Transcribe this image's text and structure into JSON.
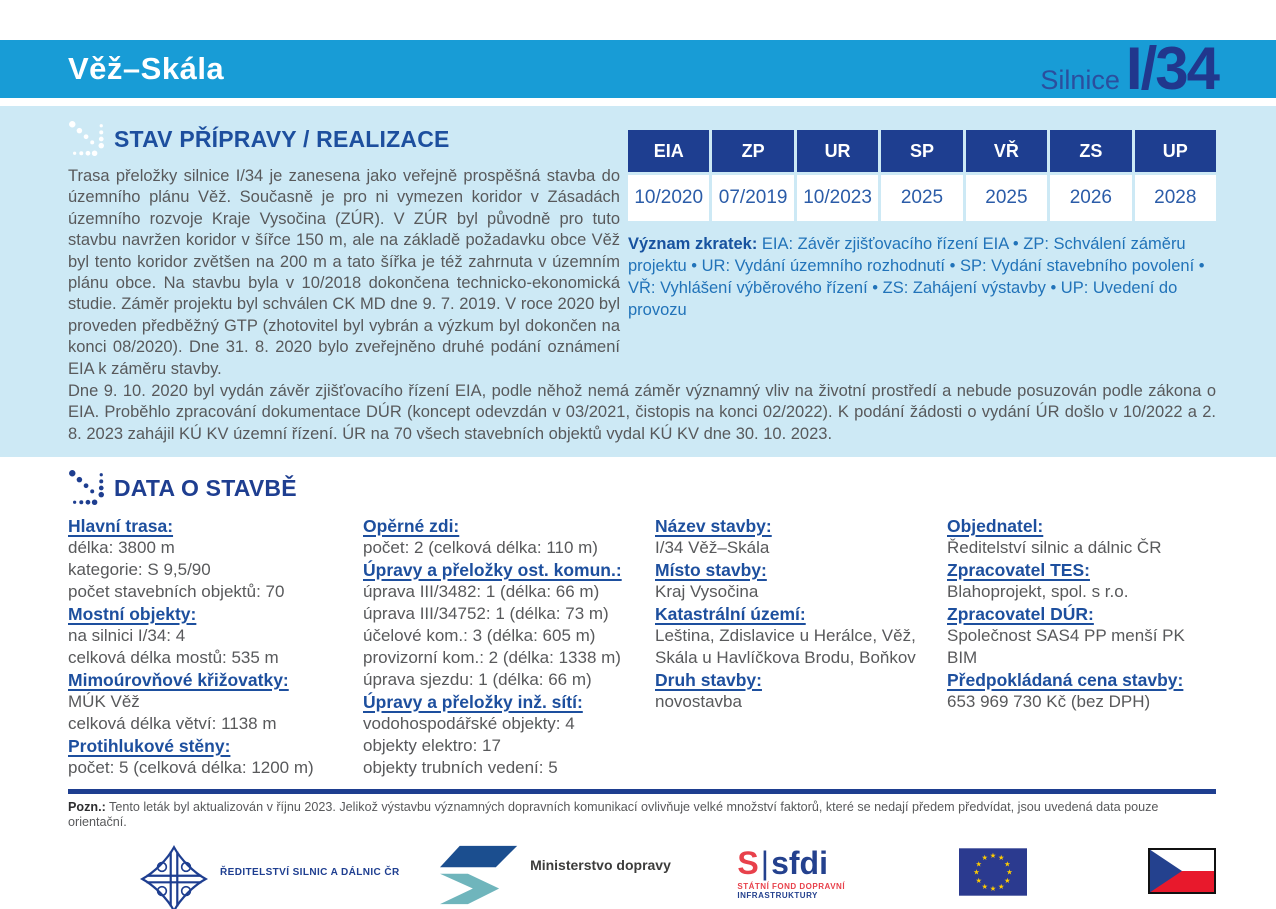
{
  "header": {
    "page_title": "Věž–Skála",
    "road_label": "Silnice",
    "road_number": "I/34"
  },
  "status_section": {
    "title": "STAV PŘÍPRAVY / REALIZACE",
    "paragraph_main": "Trasa přeložky silnice I/34 je zanesena jako veřejně prospěšná stavba do územního plánu Věž. Současně je pro ni vymezen koridor v Zásadách územního rozvoje Kraje Vysočina (ZÚR). V ZÚR byl původně pro tuto stavbu navržen koridor v šířce 150 m, ale na základě požadavku obce Věž byl tento koridor zvětšen na 200 m a tato šířka je též zahrnuta v územním plánu obce. Na stavbu byla v 10/2018 dokončena technicko-ekonomická studie. Záměr projektu byl schválen CK MD dne 9. 7. 2019. V roce 2020 byl proveden předběžný GTP (zhotovitel byl vybrán a výzkum byl dokončen na konci 08/2020). Dne 31. 8. 2020 bylo zveřejněno druhé podání oznámení EIA k záměru stavby.",
    "paragraph_full": "Dne 9. 10. 2020 byl vydán závěr zjišťovacího řízení EIA, podle něhož nemá záměr významný vliv na životní prostředí a nebude posuzován podle zákona o EIA. Proběhlo zpracování dokumentace DÚR (koncept odevzdán v 03/2021, čistopis na konci 02/2022). K podání žádosti o vydání ÚR došlo v 10/2022 a 2. 8. 2023 zahájil KÚ KV územní řízení. ÚR na 70 všech stavebních objektů vydal KÚ KV dne 30. 10. 2023."
  },
  "milestones": {
    "headers": [
      "EIA",
      "ZP",
      "UR",
      "SP",
      "VŘ",
      "ZS",
      "UP"
    ],
    "values": [
      "10/2020",
      "07/2019",
      "10/2023",
      "2025",
      "2025",
      "2026",
      "2028"
    ]
  },
  "abbreviations": {
    "label": "Význam zkratek:",
    "text": " EIA: Závěr zjišťovacího řízení EIA • ZP: Schválení záměru projektu • UR: Vydání územního rozhodnutí • SP: Vydání stavebního povolení • VŘ: Vyhlášení výběrového řízení • ZS: Zahájení výstavby • UP: Uvedení do provozu"
  },
  "data_section": {
    "title": "DATA O STAVBĚ",
    "columns": [
      {
        "groups": [
          {
            "heading": "Hlavní trasa:",
            "lines": [
              "délka: 3800 m",
              "kategorie: S 9,5/90",
              "počet stavebních objektů: 70"
            ]
          },
          {
            "heading": "Mostní objekty:",
            "lines": [
              "na silnici I/34: 4",
              "celková délka mostů: 535 m"
            ]
          },
          {
            "heading": "Mimoúrovňové křižovatky:",
            "lines": [
              "MÚK Věž",
              "celková délka větví: 1138 m"
            ]
          },
          {
            "heading": "Protihlukové stěny:",
            "lines": [
              "počet: 5 (celková délka: 1200 m)"
            ]
          }
        ]
      },
      {
        "groups": [
          {
            "heading": "Opěrné zdi:",
            "lines": [
              "počet: 2 (celková délka: 110 m)"
            ]
          },
          {
            "heading": "Úpravy a přeložky ost. komun.:",
            "lines": [
              "úprava III/3482: 1 (délka: 66 m)",
              "úprava III/34752: 1 (délka: 73 m)",
              "účelové kom.: 3 (délka: 605 m)",
              "provizorní kom.: 2 (délka: 1338 m)",
              "úprava sjezdu: 1 (délka: 66 m)"
            ]
          },
          {
            "heading": "Úpravy a přeložky inž. sítí:",
            "lines": [
              "vodohospodářské objekty: 4",
              "objekty elektro: 17",
              "objekty trubních vedení: 5"
            ]
          }
        ]
      },
      {
        "groups": [
          {
            "heading": "Název stavby:",
            "lines": [
              "I/34 Věž–Skála"
            ]
          },
          {
            "heading": "Místo stavby:",
            "lines": [
              "Kraj Vysočina"
            ]
          },
          {
            "heading": "Katastrální území:",
            "lines": [
              "Leština, Zdislavice u Herálce, Věž, Skála u Havlíčkova Brodu, Boňkov"
            ]
          },
          {
            "heading": "Druh stavby:",
            "lines": [
              "novostavba"
            ]
          }
        ]
      },
      {
        "groups": [
          {
            "heading": "Objednatel:",
            "lines": [
              "Ředitelství silnic a dálnic ČR"
            ]
          },
          {
            "heading": "Zpracovatel TES:",
            "lines": [
              "Blahoprojekt, spol. s r.o."
            ]
          },
          {
            "heading": "Zpracovatel DÚR:",
            "lines": [
              "Společnost SAS4 PP menší PK BIM"
            ]
          },
          {
            "heading": "Předpokládaná cena stavby:",
            "lines": [
              "653 969 730 Kč (bez DPH)"
            ]
          }
        ]
      }
    ]
  },
  "note": {
    "label": "Pozn.:",
    "text": " Tento leták byl aktualizován v říjnu 2023. Jelikož výstavbu významných dopravních komunikací ovlivňuje velké množství faktorů, které se nedají předem předvídat, jsou uvedená data pouze orientační."
  },
  "logos": {
    "rsd_label": "ŘEDITELSTVÍ SILNIC A DÁLNIC ČR",
    "md_label": "Ministerstvo dopravy",
    "sfdi_s": "S",
    "sfdi_word": "sfdi",
    "sfdi_sub1": "STÁTNÍ FOND DOPRAVNÍ",
    "sfdi_sub2": "INFRASTRUKTURY"
  },
  "colors": {
    "header_blue": "#189CD6",
    "panel_light_blue": "#CDE9F5",
    "navy": "#1E3E90",
    "title_blue": "#1D4F9E",
    "text_gray": "#58595B",
    "link_blue": "#2173B9",
    "sfdi_red": "#E8414B",
    "md_teal": "#6FB5BC",
    "eu_blue": "#2B3A8F",
    "star_yellow": "#FFCC00"
  }
}
